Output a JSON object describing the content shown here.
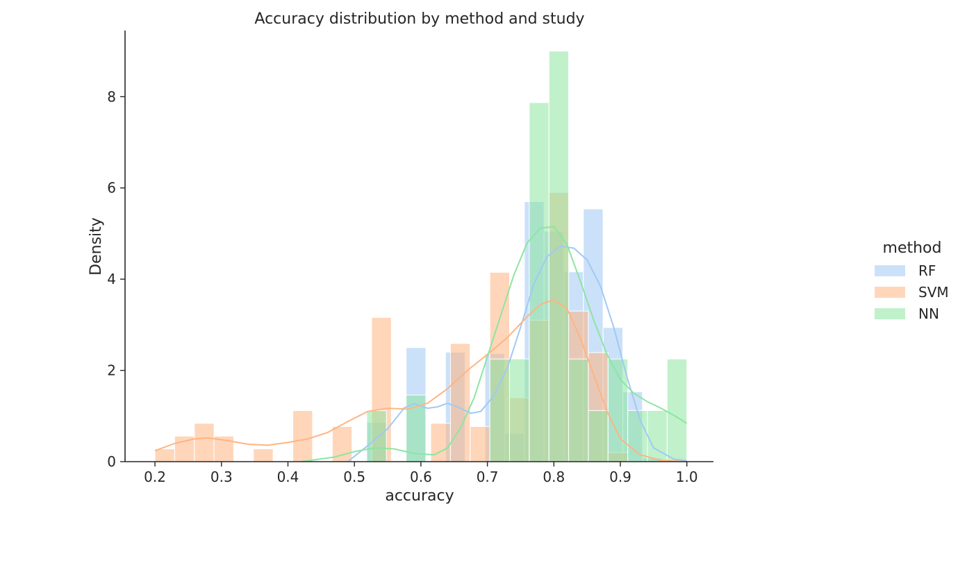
{
  "chart_data": {
    "type": "histogram",
    "title": "Accuracy distribution by method and study",
    "xlabel": "accuracy",
    "ylabel": "Density",
    "xlim": [
      0.155,
      1.04
    ],
    "ylim": [
      0,
      9.45
    ],
    "xticks": [
      "0.2",
      "0.3",
      "0.4",
      "0.5",
      "0.6",
      "0.7",
      "0.8",
      "0.9",
      "1.0"
    ],
    "yticks": [
      "0",
      "2",
      "4",
      "6",
      "8"
    ],
    "grid": false,
    "legend": {
      "title": "method",
      "position": "center-right"
    },
    "bin_width": 0.0296,
    "bin_start": 0.2,
    "series": [
      {
        "name": "RF",
        "color": "#a1c9f4",
        "bins": [
          {
            "x": 0.5185,
            "y": 0.86
          },
          {
            "x": 0.5778,
            "y": 2.5
          },
          {
            "x": 0.637,
            "y": 2.4
          },
          {
            "x": 0.6963,
            "y": 2.37
          },
          {
            "x": 0.7259,
            "y": 0.62
          },
          {
            "x": 0.7556,
            "y": 5.7
          },
          {
            "x": 0.7852,
            "y": 5.05
          },
          {
            "x": 0.8148,
            "y": 4.16
          },
          {
            "x": 0.8444,
            "y": 5.54
          },
          {
            "x": 0.8741,
            "y": 2.94
          },
          {
            "x": 0.9037,
            "y": 1.53
          },
          {
            "x": 0.9333,
            "y": 0.08
          }
        ],
        "kde": [
          [
            0.49,
            0.0
          ],
          [
            0.52,
            0.35
          ],
          [
            0.55,
            0.72
          ],
          [
            0.575,
            1.18
          ],
          [
            0.59,
            1.27
          ],
          [
            0.61,
            1.17
          ],
          [
            0.625,
            1.2
          ],
          [
            0.64,
            1.28
          ],
          [
            0.655,
            1.2
          ],
          [
            0.675,
            1.06
          ],
          [
            0.69,
            1.1
          ],
          [
            0.71,
            1.45
          ],
          [
            0.73,
            2.05
          ],
          [
            0.75,
            2.95
          ],
          [
            0.77,
            3.9
          ],
          [
            0.79,
            4.5
          ],
          [
            0.81,
            4.72
          ],
          [
            0.83,
            4.68
          ],
          [
            0.85,
            4.42
          ],
          [
            0.87,
            3.85
          ],
          [
            0.89,
            2.95
          ],
          [
            0.91,
            1.85
          ],
          [
            0.93,
            0.9
          ],
          [
            0.95,
            0.3
          ],
          [
            0.98,
            0.06
          ],
          [
            1.0,
            0.02
          ]
        ]
      },
      {
        "name": "SVM",
        "color": "#ffb482",
        "bins": [
          {
            "x": 0.2,
            "y": 0.28
          },
          {
            "x": 0.2296,
            "y": 0.56
          },
          {
            "x": 0.2593,
            "y": 0.84
          },
          {
            "x": 0.2889,
            "y": 0.56
          },
          {
            "x": 0.3481,
            "y": 0.28
          },
          {
            "x": 0.4074,
            "y": 1.12
          },
          {
            "x": 0.4667,
            "y": 0.77
          },
          {
            "x": 0.5259,
            "y": 3.16
          },
          {
            "x": 0.5852,
            "y": 0.0
          },
          {
            "x": 0.6148,
            "y": 0.84
          },
          {
            "x": 0.6444,
            "y": 2.59
          },
          {
            "x": 0.6741,
            "y": 0.77
          },
          {
            "x": 0.7037,
            "y": 4.15
          },
          {
            "x": 0.7333,
            "y": 1.4
          },
          {
            "x": 0.763,
            "y": 3.1
          },
          {
            "x": 0.7926,
            "y": 5.9
          },
          {
            "x": 0.8222,
            "y": 3.3
          },
          {
            "x": 0.8519,
            "y": 2.39
          },
          {
            "x": 0.8815,
            "y": 0.2
          }
        ],
        "kde": [
          [
            0.2,
            0.24
          ],
          [
            0.23,
            0.4
          ],
          [
            0.26,
            0.5
          ],
          [
            0.28,
            0.52
          ],
          [
            0.31,
            0.46
          ],
          [
            0.34,
            0.38
          ],
          [
            0.37,
            0.36
          ],
          [
            0.4,
            0.42
          ],
          [
            0.43,
            0.5
          ],
          [
            0.46,
            0.64
          ],
          [
            0.49,
            0.88
          ],
          [
            0.52,
            1.1
          ],
          [
            0.55,
            1.17
          ],
          [
            0.58,
            1.15
          ],
          [
            0.61,
            1.28
          ],
          [
            0.64,
            1.6
          ],
          [
            0.67,
            2.0
          ],
          [
            0.7,
            2.35
          ],
          [
            0.73,
            2.72
          ],
          [
            0.76,
            3.18
          ],
          [
            0.78,
            3.45
          ],
          [
            0.8,
            3.55
          ],
          [
            0.82,
            3.35
          ],
          [
            0.84,
            2.7
          ],
          [
            0.86,
            1.9
          ],
          [
            0.88,
            1.1
          ],
          [
            0.9,
            0.5
          ],
          [
            0.93,
            0.15
          ],
          [
            0.96,
            0.03
          ],
          [
            1.0,
            0.0
          ]
        ]
      },
      {
        "name": "NN",
        "color": "#8de5a1",
        "bins": [
          {
            "x": 0.5185,
            "y": 1.12
          },
          {
            "x": 0.5778,
            "y": 1.46
          },
          {
            "x": 0.7037,
            "y": 2.25
          },
          {
            "x": 0.7333,
            "y": 2.25
          },
          {
            "x": 0.763,
            "y": 7.87
          },
          {
            "x": 0.7926,
            "y": 9.0
          },
          {
            "x": 0.8222,
            "y": 2.25
          },
          {
            "x": 0.8519,
            "y": 1.12
          },
          {
            "x": 0.8815,
            "y": 2.25
          },
          {
            "x": 0.9111,
            "y": 1.12
          },
          {
            "x": 0.9407,
            "y": 1.12
          },
          {
            "x": 0.9704,
            "y": 2.25
          }
        ],
        "kde": [
          [
            0.42,
            0.0
          ],
          [
            0.47,
            0.1
          ],
          [
            0.5,
            0.22
          ],
          [
            0.53,
            0.3
          ],
          [
            0.56,
            0.28
          ],
          [
            0.59,
            0.18
          ],
          [
            0.62,
            0.15
          ],
          [
            0.64,
            0.3
          ],
          [
            0.66,
            0.75
          ],
          [
            0.68,
            1.4
          ],
          [
            0.7,
            2.3
          ],
          [
            0.72,
            3.2
          ],
          [
            0.74,
            4.1
          ],
          [
            0.76,
            4.8
          ],
          [
            0.78,
            5.12
          ],
          [
            0.8,
            5.15
          ],
          [
            0.82,
            4.75
          ],
          [
            0.84,
            3.95
          ],
          [
            0.86,
            3.1
          ],
          [
            0.88,
            2.35
          ],
          [
            0.9,
            1.8
          ],
          [
            0.92,
            1.5
          ],
          [
            0.94,
            1.32
          ],
          [
            0.96,
            1.18
          ],
          [
            0.98,
            1.02
          ],
          [
            1.0,
            0.84
          ]
        ]
      }
    ]
  }
}
